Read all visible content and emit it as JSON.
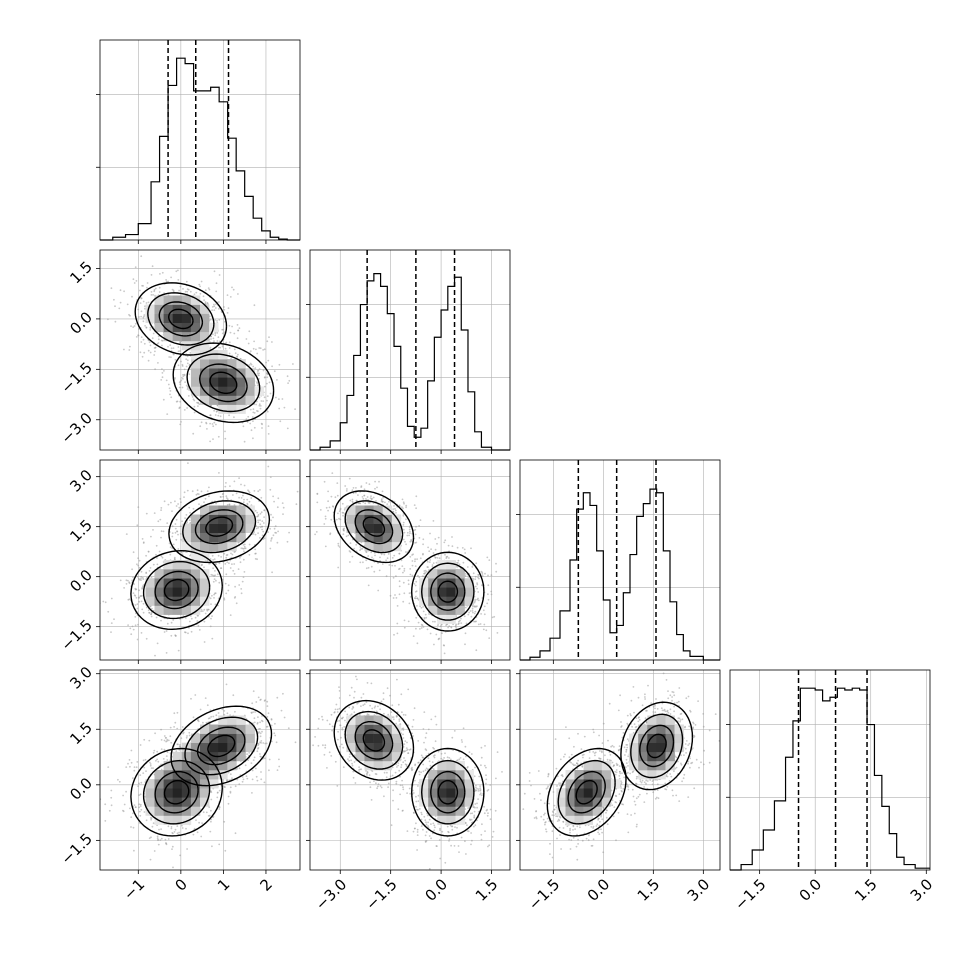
{
  "chart_data": {
    "type": "corner",
    "title": "",
    "n_params": 4,
    "grid": true,
    "colors": {
      "hist": "#000000",
      "grid": "#b0b0b0",
      "points": "#9a9a9a",
      "contour": "#000000"
    },
    "params": [
      {
        "index": 0,
        "xlim": [
          -1.9,
          2.8
        ],
        "ticks": [
          -1,
          0,
          1,
          2
        ],
        "tick_labels": [
          "−1",
          "0",
          "1",
          "2"
        ],
        "hist_ylim": [
          0,
          1.1
        ],
        "quantiles": [
          -0.3,
          0.35,
          1.12
        ],
        "hist_bins": [
          -1.9,
          -1.6,
          -1.3,
          -1.0,
          -0.7,
          -0.5,
          -0.3,
          -0.1,
          0.1,
          0.3,
          0.5,
          0.7,
          0.9,
          1.1,
          1.3,
          1.5,
          1.7,
          1.9,
          2.1,
          2.3,
          2.5,
          2.8
        ],
        "hist_counts": [
          0.0,
          0.015,
          0.03,
          0.09,
          0.32,
          0.57,
          0.85,
          1.0,
          0.97,
          0.82,
          0.82,
          0.84,
          0.76,
          0.56,
          0.38,
          0.24,
          0.12,
          0.05,
          0.015,
          0.005,
          0.0
        ]
      },
      {
        "index": 1,
        "xlim": [
          -3.9,
          2.05
        ],
        "ticks": [
          -3.0,
          -1.5,
          0.0,
          1.5
        ],
        "tick_labels": [
          "−3.0",
          "−1.5",
          "0.0",
          "1.5"
        ],
        "hist_ylim": [
          0,
          1.1
        ],
        "quantiles": [
          -2.2,
          -0.75,
          0.4
        ],
        "hist_bins": [
          -3.9,
          -3.6,
          -3.3,
          -3.0,
          -2.8,
          -2.6,
          -2.4,
          -2.2,
          -2.0,
          -1.8,
          -1.6,
          -1.4,
          -1.2,
          -1.0,
          -0.8,
          -0.6,
          -0.4,
          -0.2,
          0.0,
          0.2,
          0.4,
          0.6,
          0.8,
          1.0,
          1.2,
          1.5,
          2.05
        ],
        "hist_counts": [
          0.0,
          0.015,
          0.05,
          0.15,
          0.3,
          0.52,
          0.8,
          0.93,
          0.97,
          0.9,
          0.75,
          0.57,
          0.34,
          0.13,
          0.07,
          0.12,
          0.38,
          0.62,
          0.77,
          0.9,
          0.95,
          0.66,
          0.32,
          0.1,
          0.015,
          0.0
        ]
      },
      {
        "index": 2,
        "xlim": [
          -2.5,
          3.5
        ],
        "ticks": [
          -1.5,
          0.0,
          1.5,
          3.0
        ],
        "tick_labels": [
          "−1.5",
          "0.0",
          "1.5",
          "3.0"
        ],
        "hist_ylim": [
          0,
          1.1
        ],
        "quantiles": [
          -0.75,
          0.4,
          1.58
        ],
        "hist_bins": [
          -2.5,
          -2.2,
          -1.9,
          -1.6,
          -1.3,
          -1.0,
          -0.8,
          -0.6,
          -0.4,
          -0.2,
          0.0,
          0.2,
          0.4,
          0.6,
          0.8,
          1.0,
          1.2,
          1.4,
          1.6,
          1.8,
          2.0,
          2.2,
          2.4,
          2.6,
          3.0,
          3.5
        ],
        "hist_counts": [
          0.0,
          0.015,
          0.05,
          0.12,
          0.27,
          0.55,
          0.83,
          0.92,
          0.85,
          0.6,
          0.33,
          0.15,
          0.19,
          0.37,
          0.58,
          0.79,
          0.86,
          0.94,
          0.92,
          0.6,
          0.32,
          0.14,
          0.05,
          0.02,
          0.0
        ]
      },
      {
        "index": 3,
        "xlim": [
          -2.3,
          3.1
        ],
        "ticks": [
          -1.5,
          0.0,
          1.5,
          3.0
        ],
        "tick_labels": [
          "−1.5",
          "0.0",
          "1.5",
          "3.0"
        ],
        "hist_ylim": [
          0,
          1.1
        ],
        "quantiles": [
          -0.45,
          0.55,
          1.4
        ],
        "hist_bins": [
          -2.3,
          -2.0,
          -1.7,
          -1.4,
          -1.1,
          -0.8,
          -0.6,
          -0.4,
          -0.2,
          0.0,
          0.2,
          0.4,
          0.6,
          0.8,
          1.0,
          1.2,
          1.4,
          1.6,
          1.8,
          2.0,
          2.2,
          2.4,
          2.7,
          3.1
        ],
        "hist_counts": [
          0.0,
          0.03,
          0.11,
          0.22,
          0.38,
          0.62,
          0.82,
          1.0,
          1.0,
          0.99,
          0.93,
          0.95,
          1.0,
          0.99,
          1.0,
          0.99,
          0.8,
          0.52,
          0.35,
          0.2,
          0.07,
          0.03,
          0.01
        ]
      }
    ],
    "panels_2d": [
      {
        "row": 1,
        "col": 0,
        "ylim": [
          -3.9,
          2.05
        ],
        "modes": [
          {
            "center": [
              0.0,
              0.0
            ],
            "sigma": [
              0.5,
              0.5
            ],
            "rho": -0.2,
            "weight": 0.5
          },
          {
            "center": [
              1.0,
              -1.9
            ],
            "sigma": [
              0.55,
              0.55
            ],
            "rho": -0.2,
            "weight": 0.5
          }
        ]
      },
      {
        "row": 2,
        "col": 0,
        "ylim": [
          -2.5,
          3.5
        ],
        "modes": [
          {
            "center": [
              -0.1,
              -0.4
            ],
            "sigma": [
              0.5,
              0.55
            ],
            "rho": 0.1,
            "weight": 0.5
          },
          {
            "center": [
              0.9,
              1.5
            ],
            "sigma": [
              0.55,
              0.5
            ],
            "rho": 0.2,
            "weight": 0.5
          }
        ]
      },
      {
        "row": 2,
        "col": 1,
        "ylim": [
          -2.5,
          3.5
        ],
        "modes": [
          {
            "center": [
              -2.0,
              1.5
            ],
            "sigma": [
              0.55,
              0.5
            ],
            "rho": -0.3,
            "weight": 0.5
          },
          {
            "center": [
              0.2,
              -0.45
            ],
            "sigma": [
              0.5,
              0.55
            ],
            "rho": 0.0,
            "weight": 0.5
          }
        ]
      },
      {
        "row": 3,
        "col": 0,
        "ylim": [
          -2.3,
          3.1
        ],
        "modes": [
          {
            "center": [
              -0.1,
              -0.2
            ],
            "sigma": [
              0.5,
              0.55
            ],
            "rho": 0.1,
            "weight": 0.5
          },
          {
            "center": [
              0.95,
              1.05
            ],
            "sigma": [
              0.55,
              0.5
            ],
            "rho": 0.3,
            "weight": 0.5
          }
        ]
      },
      {
        "row": 3,
        "col": 1,
        "ylim": [
          -2.3,
          3.1
        ],
        "modes": [
          {
            "center": [
              -2.0,
              1.2
            ],
            "sigma": [
              0.55,
              0.5
            ],
            "rho": -0.2,
            "weight": 0.5
          },
          {
            "center": [
              0.2,
              -0.2
            ],
            "sigma": [
              0.5,
              0.55
            ],
            "rho": 0.0,
            "weight": 0.5
          }
        ]
      },
      {
        "row": 3,
        "col": 2,
        "ylim": [
          -2.3,
          3.1
        ],
        "modes": [
          {
            "center": [
              -0.5,
              -0.2
            ],
            "sigma": [
              0.55,
              0.55
            ],
            "rho": 0.3,
            "weight": 0.5
          },
          {
            "center": [
              1.6,
              1.05
            ],
            "sigma": [
              0.5,
              0.55
            ],
            "rho": 0.2,
            "weight": 0.5
          }
        ]
      }
    ],
    "contour_levels": [
      0.1,
      0.3,
      0.6,
      0.85
    ]
  }
}
